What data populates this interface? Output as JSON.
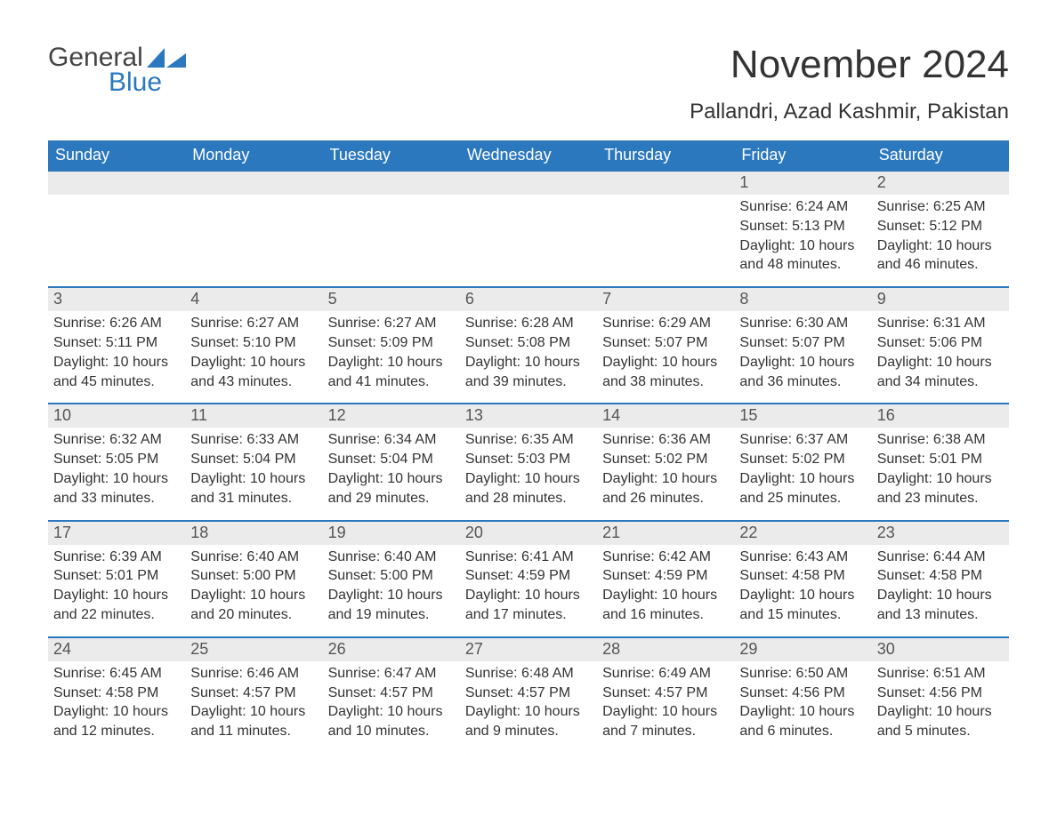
{
  "logo": {
    "part1": "General",
    "part2": "Blue"
  },
  "title": "November 2024",
  "location": "Pallandri, Azad Kashmir, Pakistan",
  "colors": {
    "accent": "#2b78bf",
    "header_text": "#ffffff",
    "daynum_bg": "#ebebeb",
    "text": "#333333",
    "background": "#ffffff"
  },
  "weekdays": [
    "Sunday",
    "Monday",
    "Tuesday",
    "Wednesday",
    "Thursday",
    "Friday",
    "Saturday"
  ],
  "weeks": [
    [
      null,
      null,
      null,
      null,
      null,
      {
        "n": "1",
        "sunrise": "Sunrise: 6:24 AM",
        "sunset": "Sunset: 5:13 PM",
        "dl1": "Daylight: 10 hours",
        "dl2": "and 48 minutes."
      },
      {
        "n": "2",
        "sunrise": "Sunrise: 6:25 AM",
        "sunset": "Sunset: 5:12 PM",
        "dl1": "Daylight: 10 hours",
        "dl2": "and 46 minutes."
      }
    ],
    [
      {
        "n": "3",
        "sunrise": "Sunrise: 6:26 AM",
        "sunset": "Sunset: 5:11 PM",
        "dl1": "Daylight: 10 hours",
        "dl2": "and 45 minutes."
      },
      {
        "n": "4",
        "sunrise": "Sunrise: 6:27 AM",
        "sunset": "Sunset: 5:10 PM",
        "dl1": "Daylight: 10 hours",
        "dl2": "and 43 minutes."
      },
      {
        "n": "5",
        "sunrise": "Sunrise: 6:27 AM",
        "sunset": "Sunset: 5:09 PM",
        "dl1": "Daylight: 10 hours",
        "dl2": "and 41 minutes."
      },
      {
        "n": "6",
        "sunrise": "Sunrise: 6:28 AM",
        "sunset": "Sunset: 5:08 PM",
        "dl1": "Daylight: 10 hours",
        "dl2": "and 39 minutes."
      },
      {
        "n": "7",
        "sunrise": "Sunrise: 6:29 AM",
        "sunset": "Sunset: 5:07 PM",
        "dl1": "Daylight: 10 hours",
        "dl2": "and 38 minutes."
      },
      {
        "n": "8",
        "sunrise": "Sunrise: 6:30 AM",
        "sunset": "Sunset: 5:07 PM",
        "dl1": "Daylight: 10 hours",
        "dl2": "and 36 minutes."
      },
      {
        "n": "9",
        "sunrise": "Sunrise: 6:31 AM",
        "sunset": "Sunset: 5:06 PM",
        "dl1": "Daylight: 10 hours",
        "dl2": "and 34 minutes."
      }
    ],
    [
      {
        "n": "10",
        "sunrise": "Sunrise: 6:32 AM",
        "sunset": "Sunset: 5:05 PM",
        "dl1": "Daylight: 10 hours",
        "dl2": "and 33 minutes."
      },
      {
        "n": "11",
        "sunrise": "Sunrise: 6:33 AM",
        "sunset": "Sunset: 5:04 PM",
        "dl1": "Daylight: 10 hours",
        "dl2": "and 31 minutes."
      },
      {
        "n": "12",
        "sunrise": "Sunrise: 6:34 AM",
        "sunset": "Sunset: 5:04 PM",
        "dl1": "Daylight: 10 hours",
        "dl2": "and 29 minutes."
      },
      {
        "n": "13",
        "sunrise": "Sunrise: 6:35 AM",
        "sunset": "Sunset: 5:03 PM",
        "dl1": "Daylight: 10 hours",
        "dl2": "and 28 minutes."
      },
      {
        "n": "14",
        "sunrise": "Sunrise: 6:36 AM",
        "sunset": "Sunset: 5:02 PM",
        "dl1": "Daylight: 10 hours",
        "dl2": "and 26 minutes."
      },
      {
        "n": "15",
        "sunrise": "Sunrise: 6:37 AM",
        "sunset": "Sunset: 5:02 PM",
        "dl1": "Daylight: 10 hours",
        "dl2": "and 25 minutes."
      },
      {
        "n": "16",
        "sunrise": "Sunrise: 6:38 AM",
        "sunset": "Sunset: 5:01 PM",
        "dl1": "Daylight: 10 hours",
        "dl2": "and 23 minutes."
      }
    ],
    [
      {
        "n": "17",
        "sunrise": "Sunrise: 6:39 AM",
        "sunset": "Sunset: 5:01 PM",
        "dl1": "Daylight: 10 hours",
        "dl2": "and 22 minutes."
      },
      {
        "n": "18",
        "sunrise": "Sunrise: 6:40 AM",
        "sunset": "Sunset: 5:00 PM",
        "dl1": "Daylight: 10 hours",
        "dl2": "and 20 minutes."
      },
      {
        "n": "19",
        "sunrise": "Sunrise: 6:40 AM",
        "sunset": "Sunset: 5:00 PM",
        "dl1": "Daylight: 10 hours",
        "dl2": "and 19 minutes."
      },
      {
        "n": "20",
        "sunrise": "Sunrise: 6:41 AM",
        "sunset": "Sunset: 4:59 PM",
        "dl1": "Daylight: 10 hours",
        "dl2": "and 17 minutes."
      },
      {
        "n": "21",
        "sunrise": "Sunrise: 6:42 AM",
        "sunset": "Sunset: 4:59 PM",
        "dl1": "Daylight: 10 hours",
        "dl2": "and 16 minutes."
      },
      {
        "n": "22",
        "sunrise": "Sunrise: 6:43 AM",
        "sunset": "Sunset: 4:58 PM",
        "dl1": "Daylight: 10 hours",
        "dl2": "and 15 minutes."
      },
      {
        "n": "23",
        "sunrise": "Sunrise: 6:44 AM",
        "sunset": "Sunset: 4:58 PM",
        "dl1": "Daylight: 10 hours",
        "dl2": "and 13 minutes."
      }
    ],
    [
      {
        "n": "24",
        "sunrise": "Sunrise: 6:45 AM",
        "sunset": "Sunset: 4:58 PM",
        "dl1": "Daylight: 10 hours",
        "dl2": "and 12 minutes."
      },
      {
        "n": "25",
        "sunrise": "Sunrise: 6:46 AM",
        "sunset": "Sunset: 4:57 PM",
        "dl1": "Daylight: 10 hours",
        "dl2": "and 11 minutes."
      },
      {
        "n": "26",
        "sunrise": "Sunrise: 6:47 AM",
        "sunset": "Sunset: 4:57 PM",
        "dl1": "Daylight: 10 hours",
        "dl2": "and 10 minutes."
      },
      {
        "n": "27",
        "sunrise": "Sunrise: 6:48 AM",
        "sunset": "Sunset: 4:57 PM",
        "dl1": "Daylight: 10 hours",
        "dl2": "and 9 minutes."
      },
      {
        "n": "28",
        "sunrise": "Sunrise: 6:49 AM",
        "sunset": "Sunset: 4:57 PM",
        "dl1": "Daylight: 10 hours",
        "dl2": "and 7 minutes."
      },
      {
        "n": "29",
        "sunrise": "Sunrise: 6:50 AM",
        "sunset": "Sunset: 4:56 PM",
        "dl1": "Daylight: 10 hours",
        "dl2": "and 6 minutes."
      },
      {
        "n": "30",
        "sunrise": "Sunrise: 6:51 AM",
        "sunset": "Sunset: 4:56 PM",
        "dl1": "Daylight: 10 hours",
        "dl2": "and 5 minutes."
      }
    ]
  ]
}
